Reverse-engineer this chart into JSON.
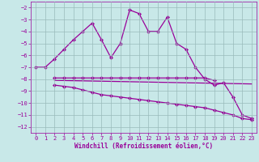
{
  "xlabel": "Windchill (Refroidissement éolien,°C)",
  "background_color": "#c8e8e8",
  "grid_color": "#99bbbb",
  "line_color": "#990099",
  "xlim": [
    -0.5,
    23.5
  ],
  "ylim": [
    -12.5,
    -1.5
  ],
  "yticks": [
    -2,
    -3,
    -4,
    -5,
    -6,
    -7,
    -8,
    -9,
    -10,
    -11,
    -12
  ],
  "xticks": [
    0,
    1,
    2,
    3,
    4,
    5,
    6,
    7,
    8,
    9,
    10,
    11,
    12,
    13,
    14,
    15,
    16,
    17,
    18,
    19,
    20,
    21,
    22,
    23
  ],
  "curve1_x": [
    0,
    1,
    2,
    3,
    4,
    5,
    6,
    7,
    8,
    9,
    10,
    11,
    12,
    13,
    14,
    15,
    16,
    17,
    18,
    19,
    20,
    21,
    22,
    23
  ],
  "curve1_y": [
    -7.0,
    -7.0,
    -6.3,
    -5.5,
    -4.7,
    -4.0,
    -3.3,
    -4.7,
    -6.2,
    -5.0,
    -2.2,
    -2.5,
    -4.0,
    -4.0,
    -2.8,
    -5.0,
    -5.5,
    -7.0,
    -8.0,
    -8.5,
    -8.3,
    -9.5,
    -11.0,
    -11.3
  ],
  "curve2_x": [
    2,
    3,
    4,
    5,
    6,
    7,
    8,
    9,
    10,
    11,
    12,
    13,
    14,
    15,
    16,
    17,
    18,
    19
  ],
  "curve2_y": [
    -7.9,
    -7.9,
    -7.9,
    -7.9,
    -7.9,
    -7.9,
    -7.9,
    -7.9,
    -7.9,
    -7.9,
    -7.9,
    -7.9,
    -7.9,
    -7.9,
    -7.9,
    -7.9,
    -7.9,
    -8.1
  ],
  "curve3_x": [
    2,
    23
  ],
  "curve3_y": [
    -8.1,
    -8.4
  ],
  "curve4_x": [
    2,
    3,
    4,
    5,
    6,
    7,
    8,
    9,
    10,
    11,
    12,
    13,
    14,
    15,
    16,
    17,
    18,
    19,
    20,
    21,
    22,
    23
  ],
  "curve4_y": [
    -8.5,
    -8.6,
    -8.7,
    -8.9,
    -9.1,
    -9.3,
    -9.4,
    -9.5,
    -9.6,
    -9.7,
    -9.8,
    -9.9,
    -10.0,
    -10.1,
    -10.2,
    -10.3,
    -10.4,
    -10.6,
    -10.8,
    -11.0,
    -11.3,
    -11.4
  ]
}
